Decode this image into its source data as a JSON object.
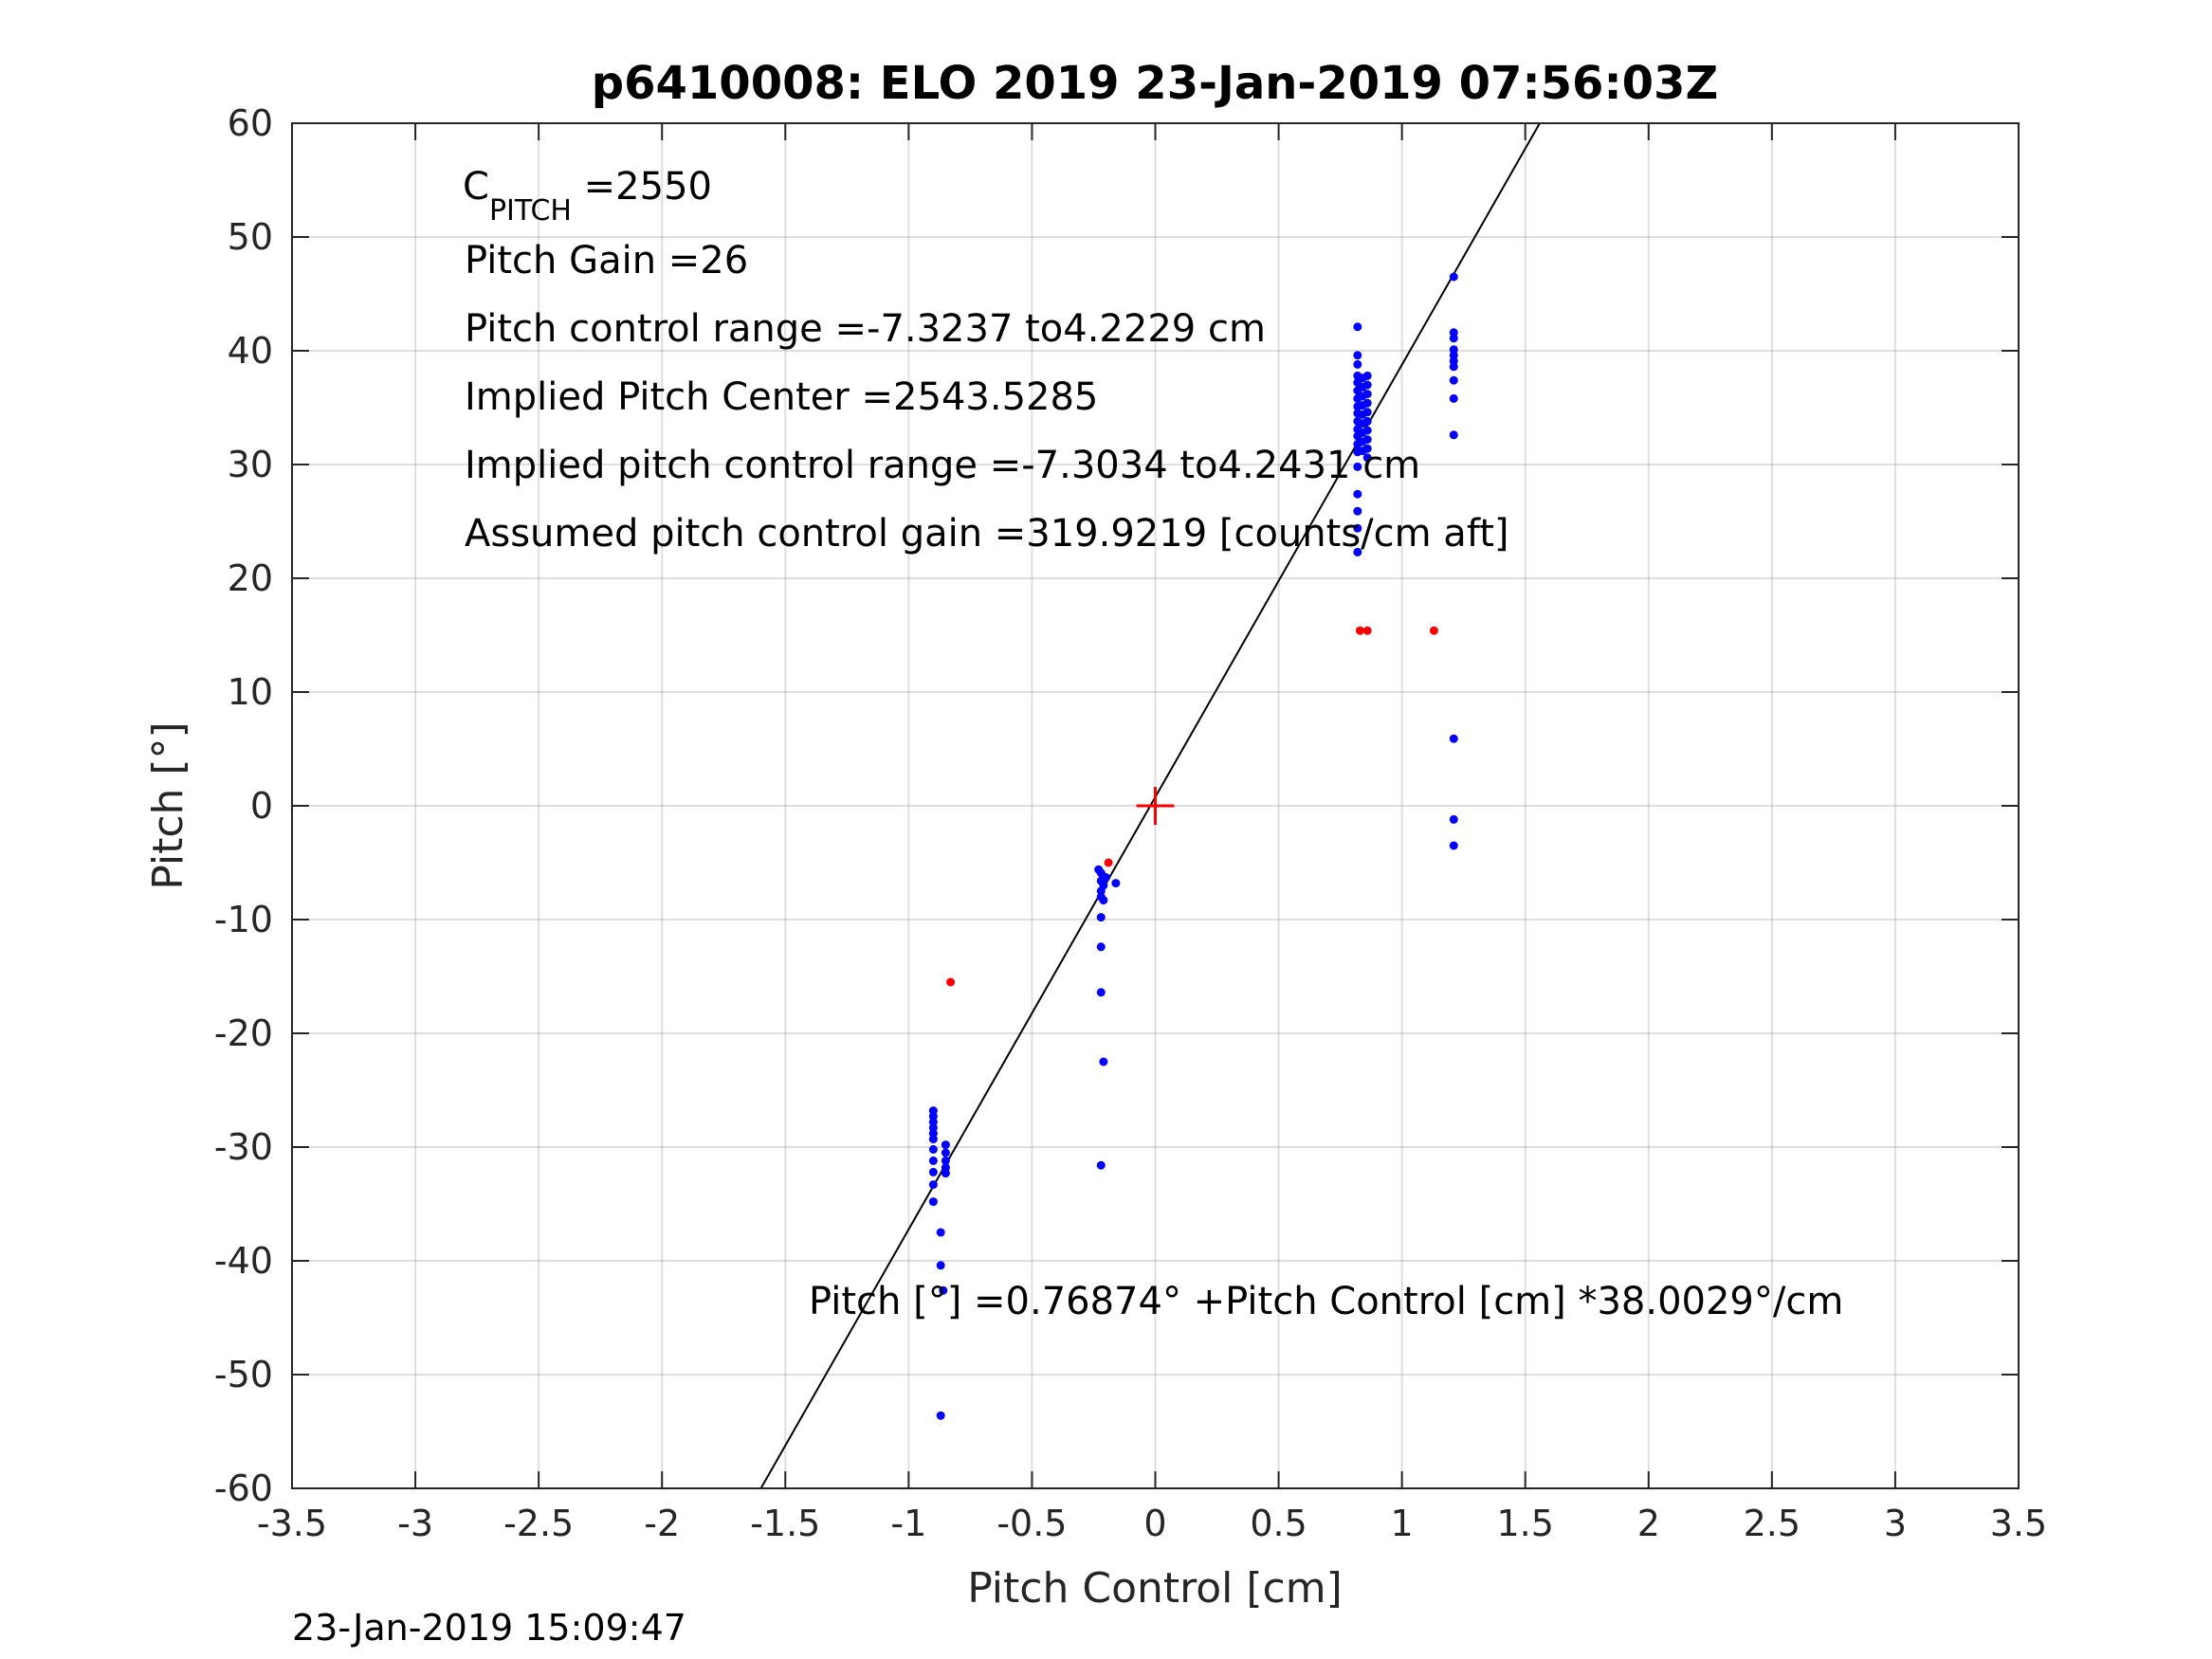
{
  "chart_data": {
    "type": "scatter",
    "title": "p6410008: ELO 2019 23-Jan-2019 07:56:03Z",
    "xlabel": "Pitch Control [cm]",
    "ylabel": "Pitch [°]",
    "xlim": [
      -3.5,
      3.5
    ],
    "ylim": [
      -60,
      60
    ],
    "xticks": [
      -3.5,
      -3,
      -2.5,
      -2,
      -1.5,
      -1,
      -0.5,
      0,
      0.5,
      1,
      1.5,
      2,
      2.5,
      3,
      3.5
    ],
    "yticks": [
      -60,
      -50,
      -40,
      -30,
      -20,
      -10,
      0,
      10,
      20,
      30,
      40,
      50,
      60
    ],
    "grid": true,
    "fit_line": {
      "intercept": 0.76874,
      "slope": 38.0029,
      "color": "#000000"
    },
    "center_marker": {
      "x": 0,
      "y": 0,
      "color": "#ff0000"
    },
    "series": [
      {
        "color": "#0000ff",
        "points": [
          [
            -0.9,
            -26.8
          ],
          [
            -0.9,
            -27.3
          ],
          [
            -0.9,
            -27.8
          ],
          [
            -0.9,
            -28.3
          ],
          [
            -0.9,
            -28.8
          ],
          [
            -0.9,
            -29.3
          ],
          [
            -0.9,
            -30.2
          ],
          [
            -0.9,
            -31.2
          ],
          [
            -0.9,
            -32.2
          ],
          [
            -0.9,
            -33.3
          ],
          [
            -0.9,
            -34.8
          ],
          [
            -0.85,
            -29.8
          ],
          [
            -0.85,
            -30.5
          ],
          [
            -0.85,
            -31.2
          ],
          [
            -0.85,
            -31.8
          ],
          [
            -0.85,
            -32.3
          ],
          [
            -0.87,
            -37.5
          ],
          [
            -0.87,
            -40.4
          ],
          [
            -0.86,
            -42.6
          ],
          [
            -0.87,
            -53.6
          ],
          [
            -0.23,
            -5.6
          ],
          [
            -0.22,
            -5.9
          ],
          [
            -0.21,
            -6.2
          ],
          [
            -0.22,
            -6.6
          ],
          [
            -0.21,
            -7.0
          ],
          [
            -0.22,
            -7.5
          ],
          [
            -0.22,
            -8.0
          ],
          [
            -0.21,
            -8.3
          ],
          [
            -0.2,
            -6.3
          ],
          [
            -0.16,
            -6.8
          ],
          [
            -0.22,
            -9.8
          ],
          [
            -0.22,
            -12.4
          ],
          [
            -0.22,
            -16.4
          ],
          [
            -0.21,
            -22.5
          ],
          [
            -0.22,
            -31.6
          ],
          [
            0.82,
            42.1
          ],
          [
            0.82,
            39.6
          ],
          [
            0.82,
            38.8
          ],
          [
            0.82,
            37.8
          ],
          [
            0.82,
            37.2
          ],
          [
            0.82,
            36.5
          ],
          [
            0.82,
            35.8
          ],
          [
            0.82,
            35.1
          ],
          [
            0.82,
            34.5
          ],
          [
            0.82,
            33.8
          ],
          [
            0.82,
            33.1
          ],
          [
            0.82,
            32.5
          ],
          [
            0.82,
            31.8
          ],
          [
            0.82,
            31.1
          ],
          [
            0.82,
            29.8
          ],
          [
            0.82,
            27.4
          ],
          [
            0.82,
            25.9
          ],
          [
            0.82,
            24.4
          ],
          [
            0.82,
            22.3
          ],
          [
            0.84,
            37.6
          ],
          [
            0.84,
            36.8
          ],
          [
            0.84,
            36.0
          ],
          [
            0.84,
            35.2
          ],
          [
            0.84,
            34.4
          ],
          [
            0.84,
            33.6
          ],
          [
            0.84,
            32.8
          ],
          [
            0.84,
            32.0
          ],
          [
            0.84,
            31.2
          ],
          [
            0.86,
            37.8
          ],
          [
            0.86,
            37.0
          ],
          [
            0.86,
            36.2
          ],
          [
            0.86,
            35.4
          ],
          [
            0.86,
            34.6
          ],
          [
            0.86,
            33.8
          ],
          [
            0.86,
            33.0
          ],
          [
            0.86,
            32.2
          ],
          [
            0.86,
            31.4
          ],
          [
            0.86,
            30.6
          ],
          [
            1.21,
            46.5
          ],
          [
            1.21,
            41.6
          ],
          [
            1.21,
            41.1
          ],
          [
            1.21,
            40.1
          ],
          [
            1.21,
            39.6
          ],
          [
            1.21,
            39.1
          ],
          [
            1.21,
            38.6
          ],
          [
            1.21,
            37.4
          ],
          [
            1.21,
            35.8
          ],
          [
            1.21,
            32.6
          ],
          [
            1.21,
            5.9
          ],
          [
            1.21,
            -1.2
          ],
          [
            1.21,
            -3.5
          ]
        ]
      },
      {
        "color": "#ff0000",
        "points": [
          [
            -0.83,
            -15.5
          ],
          [
            -0.19,
            -5.0
          ],
          [
            0.83,
            15.4
          ],
          [
            0.86,
            15.4
          ],
          [
            1.13,
            15.4
          ]
        ]
      }
    ],
    "annotations": {
      "cpitch_main": "C",
      "cpitch_sub": "PITCH",
      "cpitch_value": " =2550",
      "pitch_gain": "Pitch Gain =26",
      "control_range": "Pitch control range =-7.3237 to4.2229 cm",
      "implied_center": "Implied Pitch Center =2543.5285",
      "implied_range": "Implied pitch control range =-7.3034 to4.2431 cm",
      "assumed_gain": "Assumed pitch control gain =319.9219 [counts/cm aft]",
      "fit_equation": "Pitch [°] =0.76874° +Pitch Control [cm] *38.0029°/cm"
    }
  },
  "footer_timestamp": "23-Jan-2019 15:09:47"
}
